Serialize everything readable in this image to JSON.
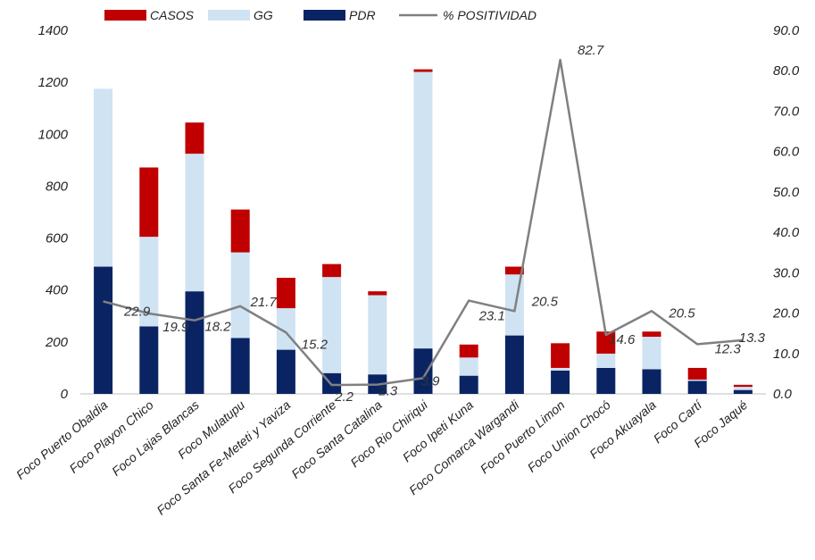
{
  "chart_data": {
    "type": "bar",
    "stacked": true,
    "categories": [
      "Foco Puerto Obaldia",
      "Foco Playon Chico",
      "Foco Lajas Blancas",
      "Foco Mulatupu",
      "Foco Santa Fe-Meteti y Yaviza",
      "Foco Segunda Corriente",
      "Foco Santa Catalina",
      "Foco Rio Chiriqui",
      "Foco Ipeti Kuna",
      "Foco Comarca Wargandi",
      "Foco Puerto Limon",
      "Foco Union Chocó",
      "Foco Akuayala",
      "Foco Cartí",
      "Foco Jaqué"
    ],
    "series": [
      {
        "name": "PDR",
        "color": "#0a2463",
        "values": [
          490,
          260,
          395,
          215,
          170,
          80,
          75,
          175,
          70,
          225,
          90,
          100,
          95,
          50,
          15
        ]
      },
      {
        "name": "GG",
        "color": "#cfe3f3",
        "values": [
          685,
          345,
          530,
          330,
          160,
          370,
          305,
          1065,
          70,
          235,
          10,
          55,
          125,
          5,
          12
        ]
      },
      {
        "name": "CASOS",
        "color": "#c00000",
        "values": [
          0,
          267,
          120,
          165,
          117,
          50,
          15,
          10,
          50,
          30,
          95,
          85,
          20,
          45,
          8
        ]
      }
    ],
    "line": {
      "name": "% POSITIVIDAD",
      "color": "#808080",
      "values": [
        22.9,
        19.9,
        18.2,
        21.7,
        15.2,
        2.2,
        2.3,
        3.9,
        23.1,
        20.5,
        82.7,
        14.6,
        20.5,
        12.3,
        13.3
      ],
      "labels": [
        "22.9",
        "19.9",
        "18.2",
        "21.7",
        "15.2",
        "2.2",
        "2.3",
        "3.9",
        "23.1",
        "20.5",
        "82.7",
        "14.6",
        "20.5",
        "12.3",
        "13.3"
      ]
    },
    "legend": [
      "CASOS",
      "GG",
      "PDR",
      "% POSITIVIDAD"
    ],
    "legend_position": "top",
    "y_left": {
      "min": 0,
      "max": 1400,
      "ticks": [
        "0",
        "200",
        "400",
        "600",
        "800",
        "1000",
        "1200",
        "1400"
      ]
    },
    "y_right": {
      "min": 0,
      "max": 90,
      "ticks": [
        "0.0",
        "10.0",
        "20.0",
        "30.0",
        "40.0",
        "50.0",
        "60.0",
        "70.0",
        "80.0",
        "90.0"
      ]
    },
    "grid": false,
    "title": "",
    "xlabel": "",
    "ylabel": ""
  }
}
